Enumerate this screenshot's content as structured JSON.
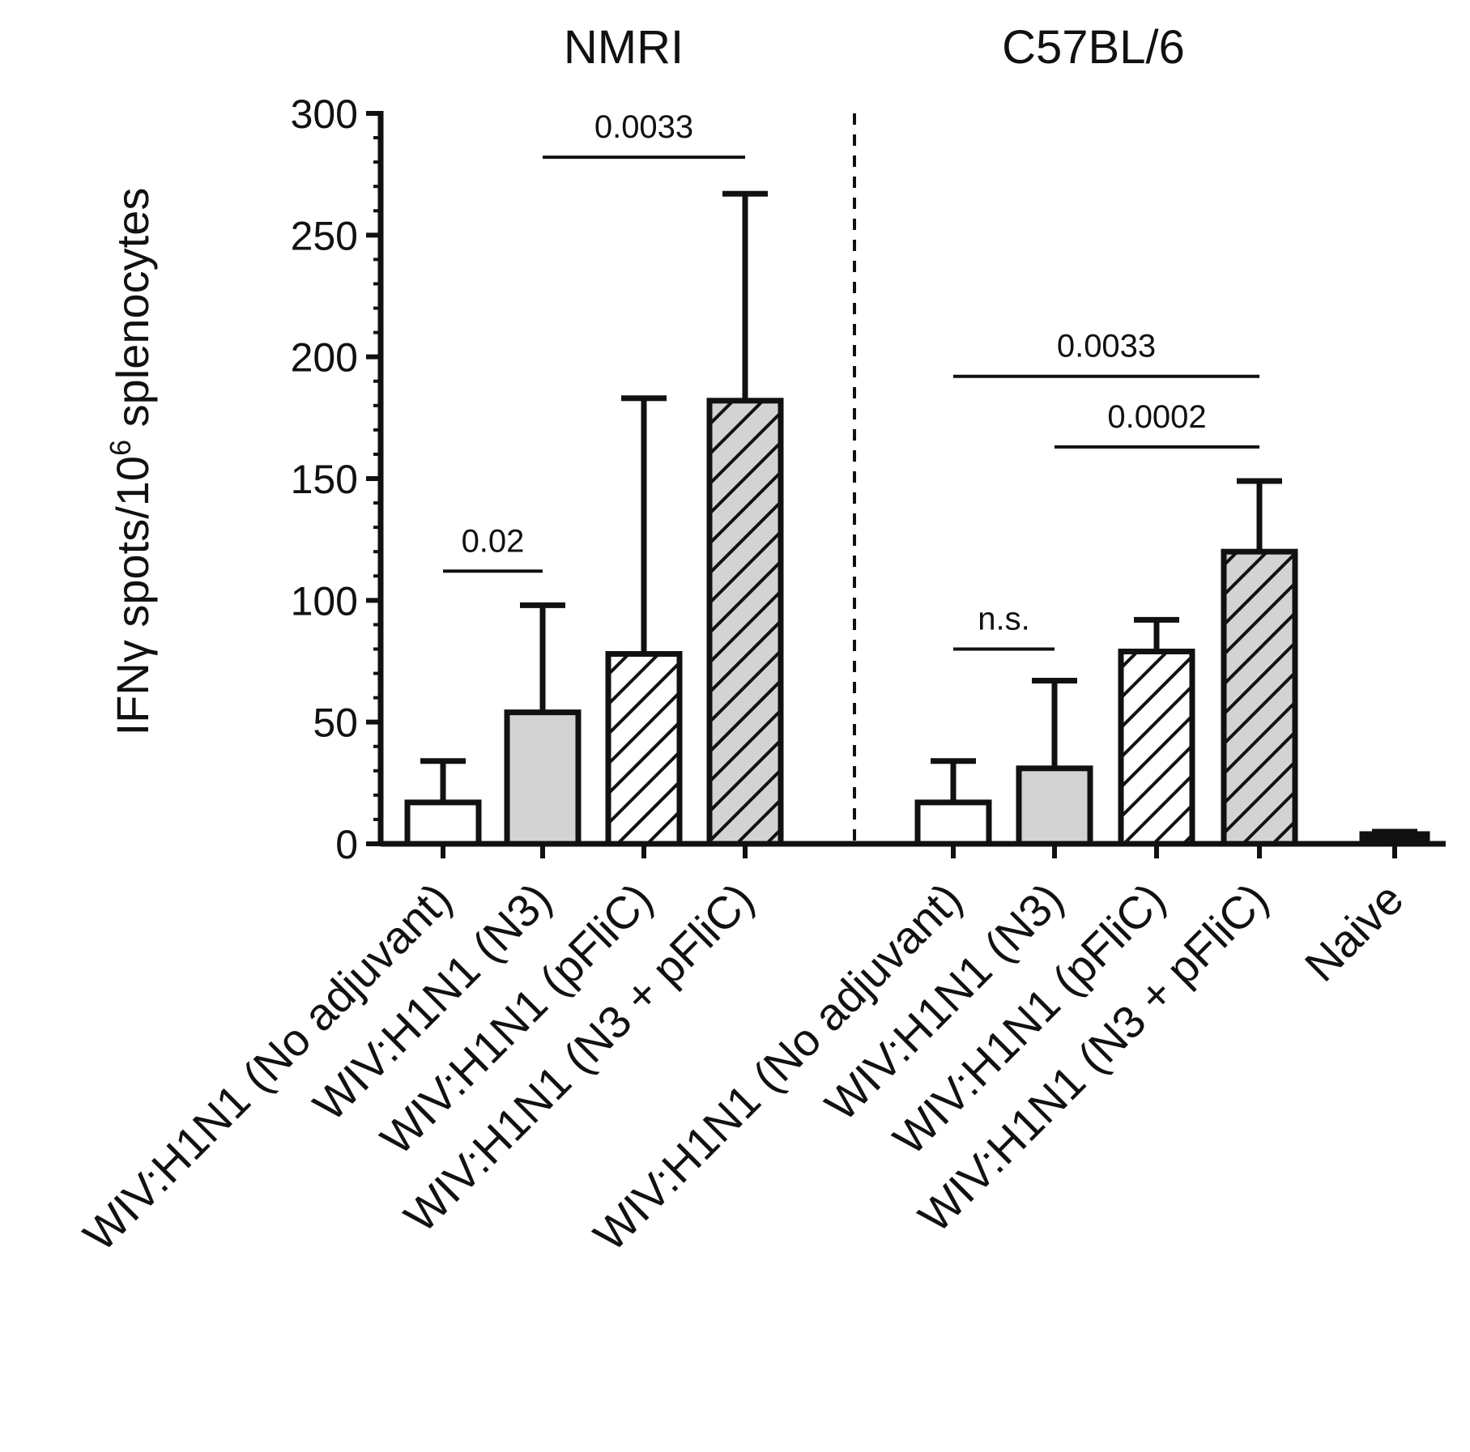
{
  "chart_data": {
    "type": "bar",
    "ylabel_main": "IFNγ spots/10",
    "ylabel_sup": "6",
    "ylabel_tail": " splenocytes",
    "ylim": [
      0,
      300
    ],
    "yticks": [
      0,
      50,
      100,
      150,
      200,
      250,
      300
    ],
    "groups": [
      "NMRI",
      "C57BL/6"
    ],
    "colors": {
      "white": "#ffffff",
      "gray": "#d3d3d3",
      "ink": "#111111"
    },
    "bars": [
      {
        "category": "WIV:H1N1 (No adjuvant)",
        "group": "NMRI",
        "value": 17,
        "error": 17,
        "fill": "white",
        "hatched": false
      },
      {
        "category": "WIV:H1N1 (N3)",
        "group": "NMRI",
        "value": 54,
        "error": 44,
        "fill": "gray",
        "hatched": false
      },
      {
        "category": "WIV:H1N1 (pFliC)",
        "group": "NMRI",
        "value": 78,
        "error": 105,
        "fill": "white",
        "hatched": true
      },
      {
        "category": "WIV:H1N1 (N3 + pFliC)",
        "group": "NMRI",
        "value": 182,
        "error": 85,
        "fill": "gray",
        "hatched": true
      },
      {
        "category": "WIV:H1N1 (No adjuvant)",
        "group": "C57BL/6",
        "value": 17,
        "error": 17,
        "fill": "white",
        "hatched": false
      },
      {
        "category": "WIV:H1N1 (N3)",
        "group": "C57BL/6",
        "value": 31,
        "error": 36,
        "fill": "gray",
        "hatched": false
      },
      {
        "category": "WIV:H1N1 (pFliC)",
        "group": "C57BL/6",
        "value": 79,
        "error": 13,
        "fill": "white",
        "hatched": true
      },
      {
        "category": "WIV:H1N1 (N3 + pFliC)",
        "group": "C57BL/6",
        "value": 120,
        "error": 29,
        "fill": "gray",
        "hatched": true
      },
      {
        "category": "Naive",
        "group": "",
        "value": 4,
        "error": 1,
        "fill": "ink",
        "hatched": false
      }
    ],
    "comparisons": [
      {
        "from": 0,
        "to": 1,
        "label": "0.02",
        "y": 112
      },
      {
        "from": 1,
        "to": 3,
        "label": "0.0033",
        "y": 282
      },
      {
        "from": 4,
        "to": 5,
        "label": "n.s.",
        "y": 80
      },
      {
        "from": 4,
        "to": 7,
        "label": "0.0033",
        "y": 192
      },
      {
        "from": 5,
        "to": 7,
        "label": "0.0002",
        "y": 163
      }
    ]
  }
}
